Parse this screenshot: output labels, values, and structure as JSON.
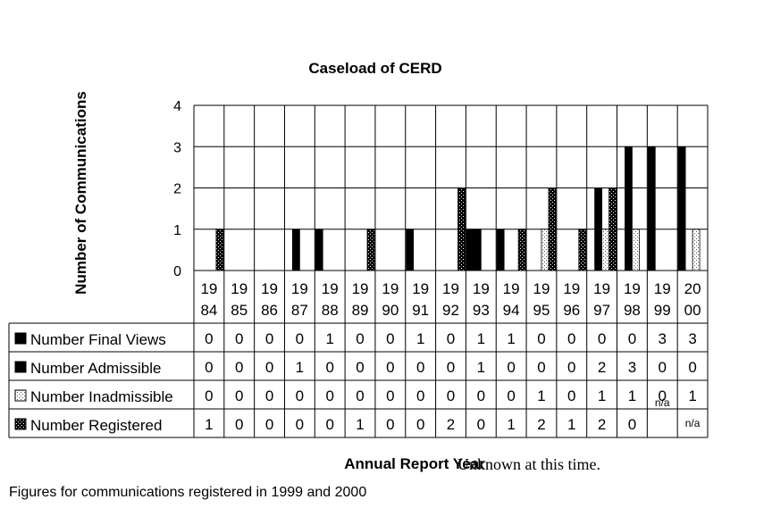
{
  "chart_data": {
    "type": "bar",
    "title": "Caseload of CERD",
    "ylabel": "Number of Communications",
    "xlabel": "Annual Report Year",
    "ylim": [
      0,
      4
    ],
    "yticks": [
      "0",
      "1",
      "2",
      "3",
      "4"
    ],
    "grid": true,
    "categories": [
      [
        "19",
        "84"
      ],
      [
        "19",
        "85"
      ],
      [
        "19",
        "86"
      ],
      [
        "19",
        "87"
      ],
      [
        "19",
        "88"
      ],
      [
        "19",
        "89"
      ],
      [
        "19",
        "90"
      ],
      [
        "19",
        "91"
      ],
      [
        "19",
        "92"
      ],
      [
        "19",
        "93"
      ],
      [
        "19",
        "94"
      ],
      [
        "19",
        "95"
      ],
      [
        "19",
        "96"
      ],
      [
        "19",
        "97"
      ],
      [
        "19",
        "98"
      ],
      [
        "19",
        "99"
      ],
      [
        "20",
        "00"
      ]
    ],
    "series": [
      {
        "name": "Number Final Views",
        "key": "final",
        "color": "#000000",
        "values": [
          0,
          0,
          0,
          0,
          1,
          0,
          0,
          1,
          0,
          1,
          1,
          0,
          0,
          0,
          0,
          3,
          3
        ],
        "cells": [
          "0",
          "0",
          "0",
          "0",
          "1",
          "0",
          "0",
          "1",
          "0",
          "1",
          "1",
          "0",
          "0",
          "0",
          "0",
          "3",
          "3"
        ]
      },
      {
        "name": "Number Admissible",
        "key": "admissible",
        "color": "#000000",
        "values": [
          0,
          0,
          0,
          1,
          0,
          0,
          0,
          0,
          0,
          1,
          0,
          0,
          0,
          2,
          3,
          0,
          0
        ],
        "cells": [
          "0",
          "0",
          "0",
          "1",
          "0",
          "0",
          "0",
          "0",
          "0",
          "1",
          "0",
          "0",
          "0",
          "2",
          "3",
          "0",
          "0"
        ]
      },
      {
        "name": "Number Inadmissible",
        "key": "inadmissible",
        "color": "#ffffff",
        "values": [
          0,
          0,
          0,
          0,
          0,
          0,
          0,
          0,
          0,
          0,
          0,
          1,
          0,
          1,
          1,
          0,
          1
        ],
        "cells": [
          "0",
          "0",
          "0",
          "0",
          "0",
          "0",
          "0",
          "0",
          "0",
          "0",
          "0",
          "1",
          "0",
          "1",
          "1",
          "0",
          "1"
        ]
      },
      {
        "name": "Number Registered",
        "key": "registered",
        "color": "#000000",
        "values": [
          1,
          0,
          0,
          0,
          0,
          1,
          0,
          0,
          2,
          0,
          1,
          2,
          1,
          2,
          0,
          null,
          null
        ],
        "cells": [
          "1",
          "0",
          "0",
          "0",
          "0",
          "1",
          "0",
          "0",
          "2",
          "0",
          "1",
          "2",
          "1",
          "2",
          "0",
          "",
          ""
        ]
      }
    ],
    "na_label": "n/a"
  },
  "annotation": "Unknown at this time.",
  "footnote": "Figures for  communications registered in 1999 and 2000"
}
